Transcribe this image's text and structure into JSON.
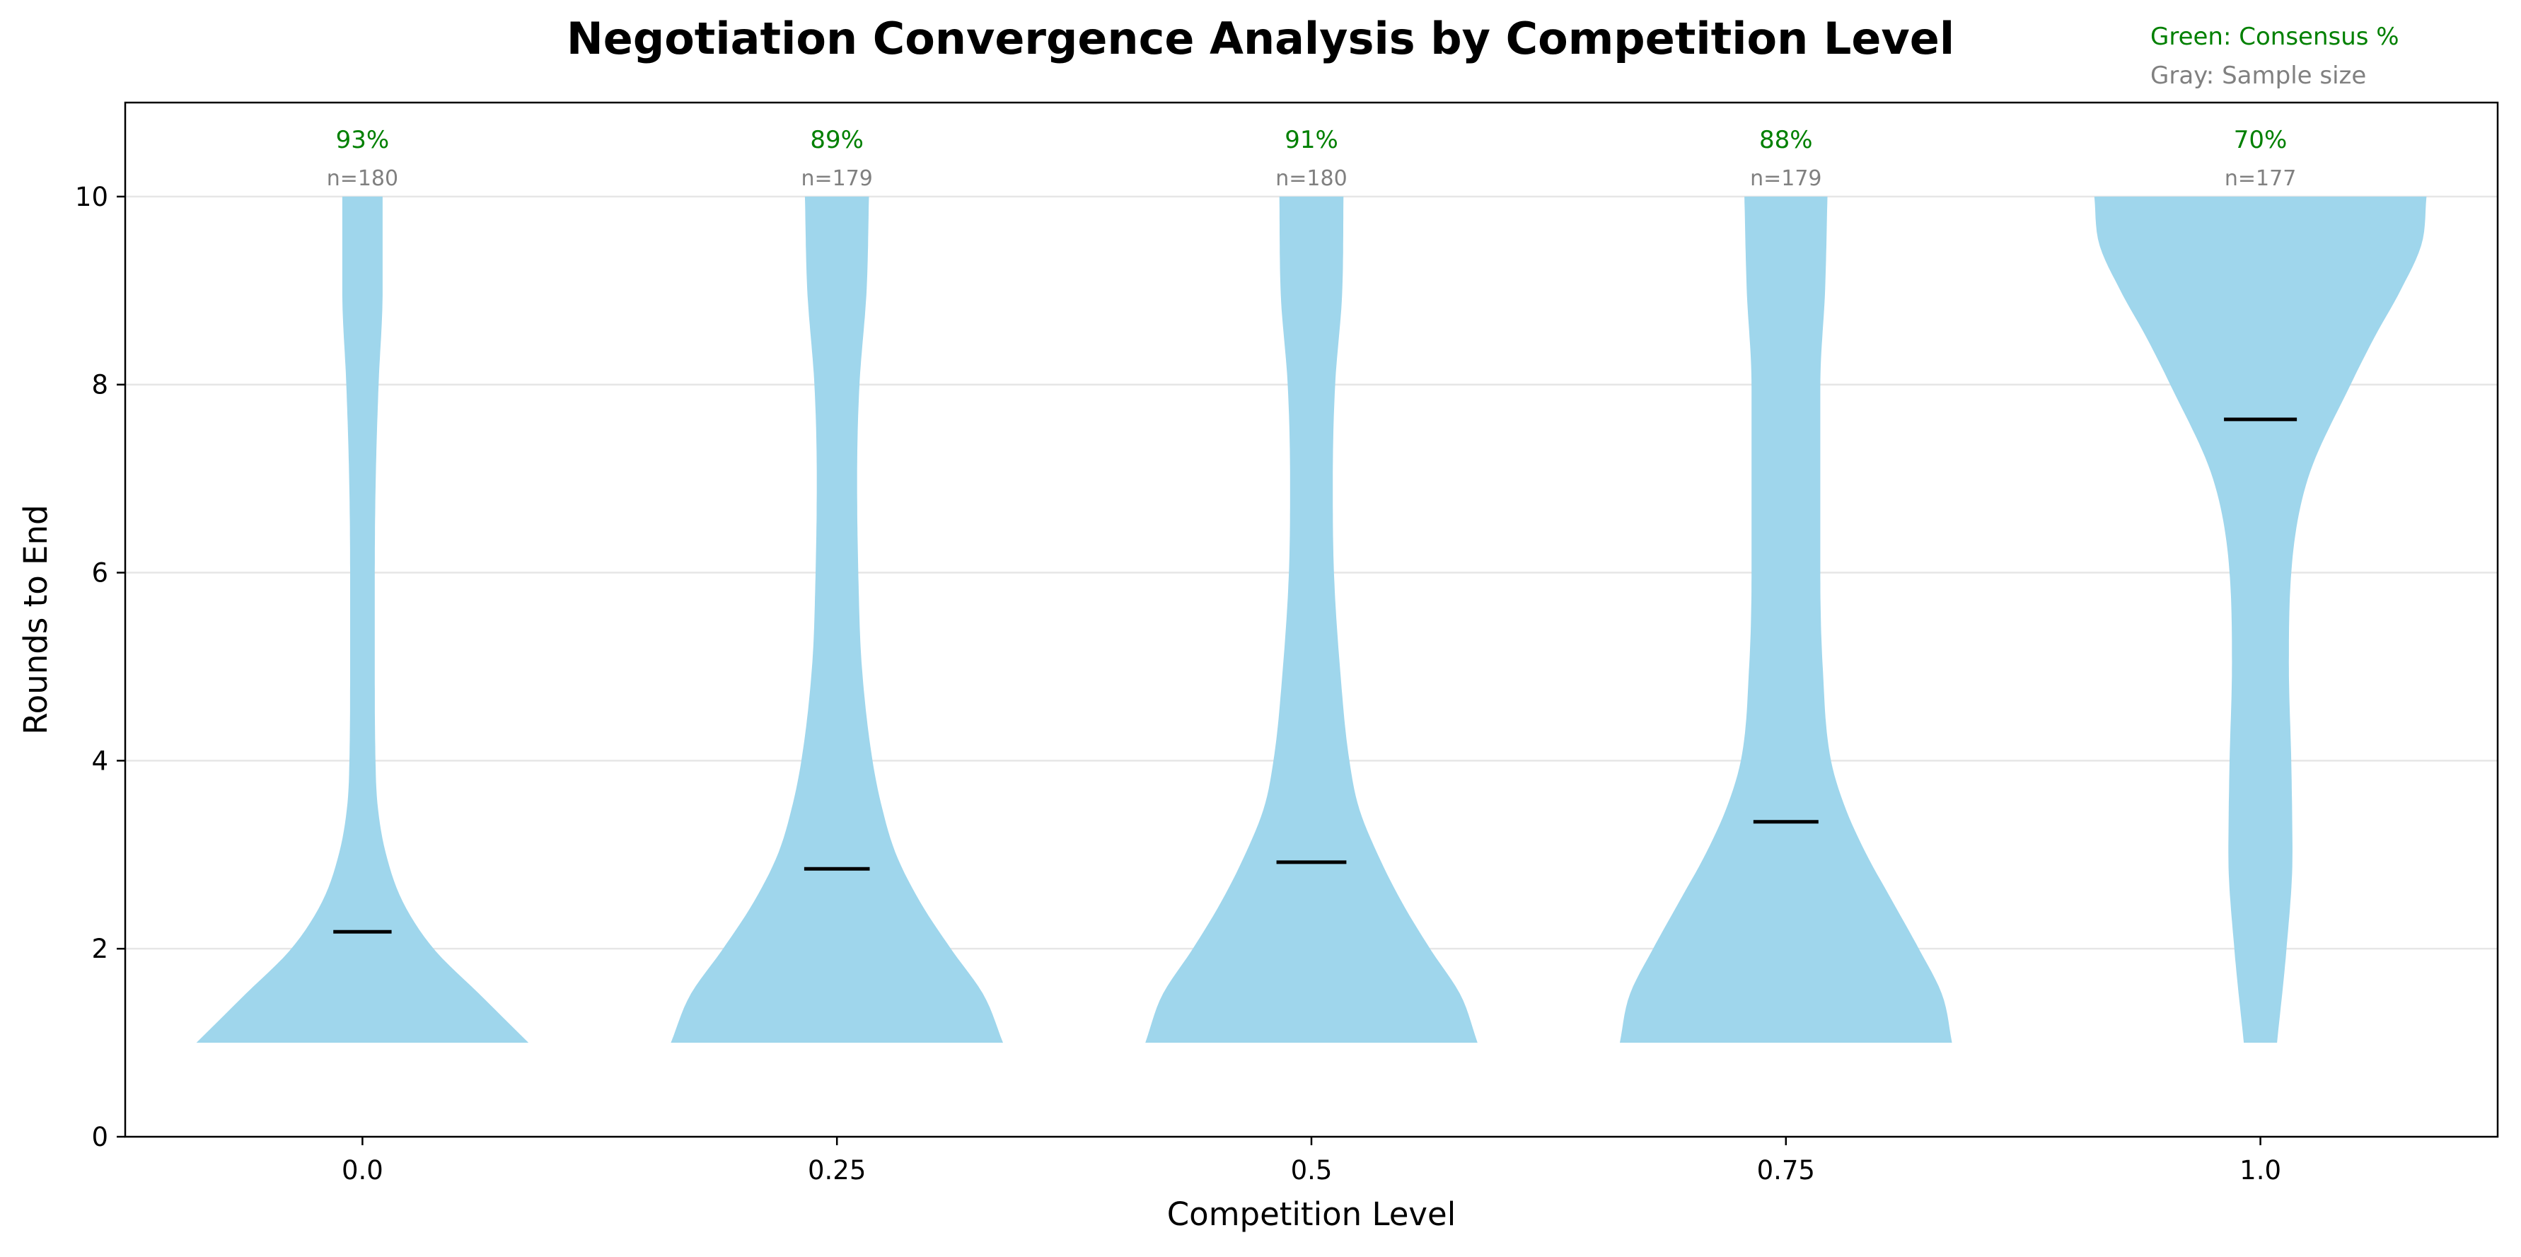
{
  "chart_data": {
    "type": "violin",
    "title": "Negotiation Convergence Analysis by Competition Level",
    "xlabel": "Competition Level",
    "ylabel": "Rounds to End",
    "categories": [
      "0.0",
      "0.25",
      "0.5",
      "0.75",
      "1.0"
    ],
    "ylim": [
      0,
      11
    ],
    "yticks": [
      0,
      2,
      4,
      6,
      8,
      10
    ],
    "grid": "y",
    "legend": {
      "placement": "top-right",
      "consensus_label": "Green: Consensus %",
      "sample_label": "Gray: Sample size"
    },
    "colors": {
      "violin": "#9fd6ec",
      "median": "#000000",
      "consensus": "#008000",
      "sample": "#808080",
      "grid": "#e6e6e6"
    },
    "series": [
      {
        "category": "0.0",
        "median": 2.18,
        "consensus": "93%",
        "sample": "n=180",
        "min": 1,
        "max": 10,
        "profile": [
          [
            1,
            0.7
          ],
          [
            1.5,
            0.5
          ],
          [
            2,
            0.3
          ],
          [
            2.5,
            0.17
          ],
          [
            3,
            0.1
          ],
          [
            3.5,
            0.065
          ],
          [
            4,
            0.055
          ],
          [
            5,
            0.052
          ],
          [
            6,
            0.052
          ],
          [
            7,
            0.056
          ],
          [
            8,
            0.068
          ],
          [
            9,
            0.085
          ],
          [
            10,
            0.085
          ]
        ]
      },
      {
        "category": "0.25",
        "median": 2.85,
        "consensus": "89%",
        "sample": "n=179",
        "min": 1,
        "max": 10,
        "profile": [
          [
            1,
            0.7
          ],
          [
            1.5,
            0.62
          ],
          [
            2,
            0.48
          ],
          [
            2.5,
            0.35
          ],
          [
            3,
            0.25
          ],
          [
            3.5,
            0.19
          ],
          [
            4,
            0.15
          ],
          [
            5,
            0.105
          ],
          [
            6,
            0.09
          ],
          [
            7,
            0.085
          ],
          [
            8,
            0.095
          ],
          [
            9,
            0.125
          ],
          [
            10,
            0.135
          ]
        ]
      },
      {
        "category": "0.5",
        "median": 2.92,
        "consensus": "91%",
        "sample": "n=180",
        "min": 1,
        "max": 10,
        "profile": [
          [
            1,
            0.7
          ],
          [
            1.5,
            0.63
          ],
          [
            2,
            0.5
          ],
          [
            2.5,
            0.38
          ],
          [
            3,
            0.28
          ],
          [
            3.5,
            0.2
          ],
          [
            4,
            0.16
          ],
          [
            5,
            0.12
          ],
          [
            6,
            0.095
          ],
          [
            7,
            0.09
          ],
          [
            8,
            0.1
          ],
          [
            9,
            0.13
          ],
          [
            10,
            0.135
          ]
        ]
      },
      {
        "category": "0.75",
        "median": 3.35,
        "consensus": "88%",
        "sample": "n=179",
        "min": 1,
        "max": 10,
        "profile": [
          [
            1,
            0.7
          ],
          [
            1.5,
            0.66
          ],
          [
            2,
            0.56
          ],
          [
            2.5,
            0.45
          ],
          [
            3,
            0.34
          ],
          [
            3.5,
            0.25
          ],
          [
            4,
            0.19
          ],
          [
            5,
            0.155
          ],
          [
            6,
            0.145
          ],
          [
            7,
            0.145
          ],
          [
            8,
            0.145
          ],
          [
            9,
            0.165
          ],
          [
            10,
            0.175
          ]
        ]
      },
      {
        "category": "1.0",
        "median": 7.63,
        "consensus": "70%",
        "sample": "n=177",
        "min": 1,
        "max": 10,
        "profile": [
          [
            1,
            0.07
          ],
          [
            2,
            0.11
          ],
          [
            3,
            0.135
          ],
          [
            4,
            0.13
          ],
          [
            5,
            0.12
          ],
          [
            6,
            0.13
          ],
          [
            7,
            0.2
          ],
          [
            8,
            0.38
          ],
          [
            8.5,
            0.48
          ],
          [
            9,
            0.59
          ],
          [
            9.5,
            0.68
          ],
          [
            10,
            0.7
          ]
        ]
      }
    ]
  }
}
